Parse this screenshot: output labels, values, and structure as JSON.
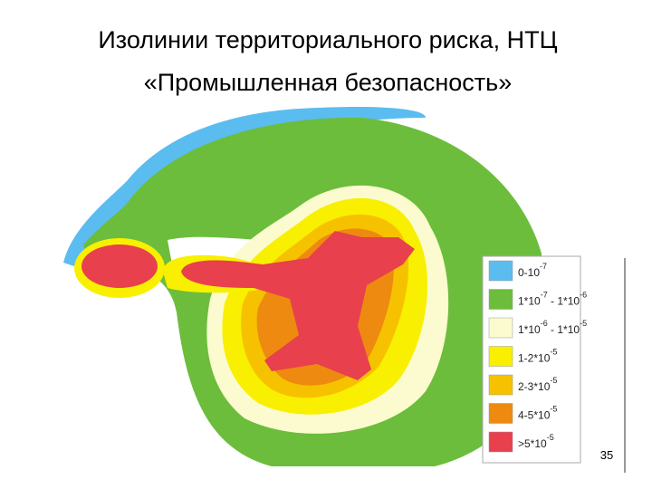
{
  "header": {
    "title_lines": [
      "Изолинии территориального риска, НТЦ",
      "«Промышленная безопасность»"
    ]
  },
  "legend": {
    "items": [
      {
        "color": "#5bbcf0",
        "label_parts": [
          "0-10",
          "-7"
        ]
      },
      {
        "color": "#6cbd3c",
        "label_parts": [
          "1*10",
          "-7",
          " - 1*10",
          "-6"
        ]
      },
      {
        "color": "#fbfbcf",
        "label_parts": [
          "1*10",
          "-6",
          " - 1*10",
          "-5"
        ]
      },
      {
        "color": "#f8f000",
        "label_parts": [
          "1-2*10",
          "-5"
        ]
      },
      {
        "color": "#f6c200",
        "label_parts": [
          "2-3*10",
          "-5"
        ]
      },
      {
        "color": "#ee8a10",
        "label_parts": [
          "4-5*10",
          "-5"
        ]
      },
      {
        "color": "#e8404c",
        "label_parts": [
          ">5*10",
          "-5"
        ]
      }
    ]
  },
  "page_number": "35"
}
